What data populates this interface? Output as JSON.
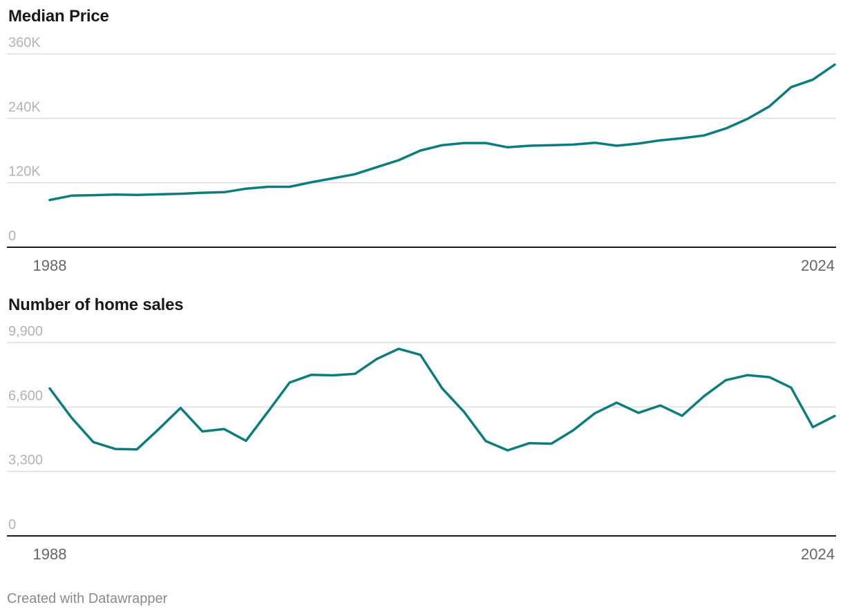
{
  "footer": "Created with Datawrapper",
  "colors": {
    "line": "#0b7d7d",
    "grid": "#dddddd",
    "axis": "#1a1a1a",
    "ytick": "#b3b3b3",
    "xtick": "#666666"
  },
  "chart_data": [
    {
      "type": "line",
      "title": "Median Price",
      "x": [
        1988,
        1989,
        1990,
        1991,
        1992,
        1993,
        1994,
        1995,
        1996,
        1997,
        1998,
        1999,
        2000,
        2001,
        2002,
        2003,
        2004,
        2005,
        2006,
        2007,
        2008,
        2009,
        2010,
        2011,
        2012,
        2013,
        2014,
        2015,
        2016,
        2017,
        2018,
        2019,
        2020,
        2021,
        2022,
        2023,
        2024
      ],
      "series": [
        {
          "values": [
            88000,
            96000,
            97000,
            98000,
            97500,
            98500,
            99500,
            101500,
            102500,
            109000,
            112500,
            112500,
            121000,
            128500,
            136000,
            149000,
            162000,
            180000,
            190000,
            194000,
            194000,
            186000,
            189000,
            190000,
            191000,
            194500,
            189000,
            193000,
            199000,
            203000,
            208000,
            221000,
            239000,
            262000,
            298000,
            312000,
            340000
          ]
        }
      ],
      "ylim": [
        0,
        360000
      ],
      "yticks": [
        0,
        120000,
        240000,
        360000
      ],
      "ytick_labels": [
        "0",
        "120K",
        "240K",
        "360K"
      ],
      "xtick_labels": [
        "1988",
        "2024"
      ],
      "grid": true
    },
    {
      "type": "line",
      "title": "Number of home sales",
      "x": [
        1988,
        1989,
        1990,
        1991,
        1992,
        1993,
        1994,
        1995,
        1996,
        1997,
        1998,
        1999,
        2000,
        2001,
        2002,
        2003,
        2004,
        2005,
        2006,
        2007,
        2008,
        2009,
        2010,
        2011,
        2012,
        2013,
        2014,
        2015,
        2016,
        2017,
        2018,
        2019,
        2020,
        2021,
        2022,
        2023,
        2024
      ],
      "series": [
        {
          "values": [
            7550,
            6050,
            4800,
            4450,
            4430,
            5470,
            6550,
            5350,
            5470,
            4870,
            6350,
            7850,
            8250,
            8220,
            8300,
            9060,
            9580,
            9270,
            7550,
            6350,
            4850,
            4380,
            4750,
            4720,
            5400,
            6280,
            6820,
            6300,
            6680,
            6150,
            7150,
            7970,
            8230,
            8130,
            7590,
            5570,
            6140
          ]
        }
      ],
      "ylim": [
        0,
        9900
      ],
      "yticks": [
        0,
        3300,
        6600,
        9900
      ],
      "ytick_labels": [
        "0",
        "3,300",
        "6,600",
        "9,900"
      ],
      "xtick_labels": [
        "1988",
        "2024"
      ],
      "grid": true
    }
  ]
}
